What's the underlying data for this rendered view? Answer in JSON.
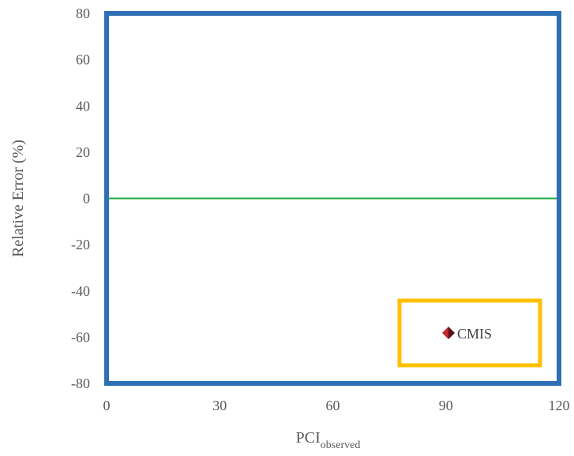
{
  "chart_data": {
    "type": "scatter",
    "title": "",
    "xlabel": "PCI",
    "xlabel_subscript": "observed",
    "ylabel": "Relative Error (%)",
    "xlim": [
      0,
      120
    ],
    "ylim": [
      -80,
      80
    ],
    "x_ticks": [
      "0",
      "30",
      "60",
      "90",
      "120"
    ],
    "y_ticks": [
      "80",
      "60",
      "40",
      "20",
      "0",
      "-20",
      "-40",
      "-60",
      "-80"
    ],
    "reference_line": {
      "y": 0,
      "color": "#22aa44"
    },
    "series": [
      {
        "name": "CMIS",
        "marker": "diamond",
        "color": "#c0282d",
        "points": []
      }
    ],
    "legend_placement": "bottom-right",
    "grid": false,
    "colors": {
      "plot_border": "#2e6fb5",
      "legend_border": "#ffc000",
      "marker": "#c0282d",
      "marker_dark": "#5a1014"
    }
  }
}
